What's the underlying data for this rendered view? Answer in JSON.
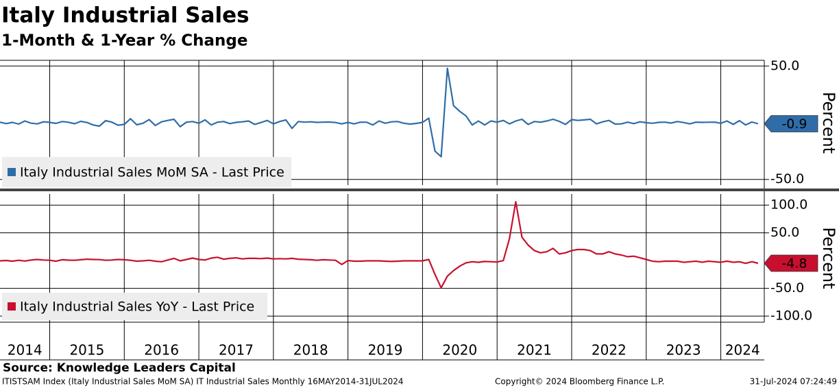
{
  "chart_data": [
    {
      "type": "line",
      "title": "Italy Industrial Sales",
      "subtitle": "1-Month & 1-Year % Change",
      "ylabel": "Percent",
      "x": [
        "2014-05",
        "2014-06",
        "2014-07",
        "2014-08",
        "2014-09",
        "2014-10",
        "2014-11",
        "2014-12",
        "2015-01",
        "2015-02",
        "2015-03",
        "2015-04",
        "2015-05",
        "2015-06",
        "2015-07",
        "2015-08",
        "2015-09",
        "2015-10",
        "2015-11",
        "2015-12",
        "2016-01",
        "2016-02",
        "2016-03",
        "2016-04",
        "2016-05",
        "2016-06",
        "2016-07",
        "2016-08",
        "2016-09",
        "2016-10",
        "2016-11",
        "2016-12",
        "2017-01",
        "2017-02",
        "2017-03",
        "2017-04",
        "2017-05",
        "2017-06",
        "2017-07",
        "2017-08",
        "2017-09",
        "2017-10",
        "2017-11",
        "2017-12",
        "2018-01",
        "2018-02",
        "2018-03",
        "2018-04",
        "2018-05",
        "2018-06",
        "2018-07",
        "2018-08",
        "2018-09",
        "2018-10",
        "2018-11",
        "2018-12",
        "2019-01",
        "2019-02",
        "2019-03",
        "2019-04",
        "2019-05",
        "2019-06",
        "2019-07",
        "2019-08",
        "2019-09",
        "2019-10",
        "2019-11",
        "2019-12",
        "2020-01",
        "2020-02",
        "2020-03",
        "2020-04",
        "2020-05",
        "2020-06",
        "2020-07",
        "2020-08",
        "2020-09",
        "2020-10",
        "2020-11",
        "2020-12",
        "2021-01",
        "2021-02",
        "2021-03",
        "2021-04",
        "2021-05",
        "2021-06",
        "2021-07",
        "2021-08",
        "2021-09",
        "2021-10",
        "2021-11",
        "2021-12",
        "2022-01",
        "2022-02",
        "2022-03",
        "2022-04",
        "2022-05",
        "2022-06",
        "2022-07",
        "2022-08",
        "2022-09",
        "2022-10",
        "2022-11",
        "2022-12",
        "2023-01",
        "2023-02",
        "2023-03",
        "2023-04",
        "2023-05",
        "2023-06",
        "2023-07",
        "2023-08",
        "2023-09",
        "2023-10",
        "2023-11",
        "2023-12",
        "2024-01",
        "2024-02",
        "2024-03",
        "2024-04",
        "2024-05",
        "2024-06",
        "2024-07"
      ],
      "series": [
        {
          "name": "Italy Industrial Sales MoM SA - Last Price",
          "color": "#2e6da8",
          "values": [
            0.5,
            -0.8,
            0.3,
            -1.2,
            1.5,
            -0.4,
            -1.0,
            0.8,
            0.3,
            -0.6,
            1.0,
            0.4,
            -0.9,
            1.2,
            0.2,
            -2.0,
            -3.0,
            1.8,
            0.5,
            -2.2,
            -1.5,
            3.5,
            -1.8,
            -0.5,
            2.8,
            -2.5,
            0.8,
            2.0,
            3.0,
            -3.5,
            0.5,
            1.0,
            -0.5,
            2.5,
            -2.0,
            0.5,
            1.0,
            -0.8,
            0.3,
            0.8,
            1.5,
            -1.5,
            0.2,
            2.0,
            -1.0,
            1.0,
            2.5,
            -5.0,
            1.0,
            0.5,
            0.8,
            0.3,
            0.5,
            0.6,
            0.2,
            -1.0,
            0.3,
            -1.0,
            0.5,
            0.4,
            -2.0,
            1.5,
            -0.5,
            0.8,
            1.0,
            -0.5,
            -1.2,
            -0.6,
            0.3,
            4.0,
            -25,
            -30,
            48,
            15,
            10,
            6,
            -2,
            1.5,
            -2,
            1.5,
            0.5,
            2.0,
            -1.0,
            1.5,
            3.0,
            -1.5,
            1.0,
            0.5,
            1.5,
            3.0,
            1.2,
            -1.5,
            2.8,
            2.0,
            2.5,
            3.0,
            -1.0,
            0.8,
            2.0,
            -1.2,
            -1.0,
            0.5,
            -0.8,
            0.8,
            0.0,
            -0.5,
            0.3,
            0.5,
            -0.3,
            1.0,
            0.2,
            -1.0,
            0.5,
            0.3,
            0.4,
            0.5,
            -0.5,
            1.5,
            -1.5,
            1.8,
            -2.0,
            0.6,
            -0.9
          ]
        }
      ],
      "xlim": [
        "2014-05",
        "2024-08"
      ],
      "xticks": [
        2014,
        2015,
        2016,
        2017,
        2018,
        2019,
        2020,
        2021,
        2022,
        2023,
        2024
      ],
      "ylim": [
        -55,
        55
      ],
      "yticks": [
        {
          "value": 50,
          "label": "50.0"
        },
        {
          "value": -50,
          "label": "-50.0"
        }
      ],
      "grid": true
    },
    {
      "type": "line",
      "ylabel": "Percent",
      "x": [
        "2014-05",
        "2014-06",
        "2014-07",
        "2014-08",
        "2014-09",
        "2014-10",
        "2014-11",
        "2014-12",
        "2015-01",
        "2015-02",
        "2015-03",
        "2015-04",
        "2015-05",
        "2015-06",
        "2015-07",
        "2015-08",
        "2015-09",
        "2015-10",
        "2015-11",
        "2015-12",
        "2016-01",
        "2016-02",
        "2016-03",
        "2016-04",
        "2016-05",
        "2016-06",
        "2016-07",
        "2016-08",
        "2016-09",
        "2016-10",
        "2016-11",
        "2016-12",
        "2017-01",
        "2017-02",
        "2017-03",
        "2017-04",
        "2017-05",
        "2017-06",
        "2017-07",
        "2017-08",
        "2017-09",
        "2017-10",
        "2017-11",
        "2017-12",
        "2018-01",
        "2018-02",
        "2018-03",
        "2018-04",
        "2018-05",
        "2018-06",
        "2018-07",
        "2018-08",
        "2018-09",
        "2018-10",
        "2018-11",
        "2018-12",
        "2019-01",
        "2019-02",
        "2019-03",
        "2019-04",
        "2019-05",
        "2019-06",
        "2019-07",
        "2019-08",
        "2019-09",
        "2019-10",
        "2019-11",
        "2019-12",
        "2020-01",
        "2020-02",
        "2020-03",
        "2020-04",
        "2020-05",
        "2020-06",
        "2020-07",
        "2020-08",
        "2020-09",
        "2020-10",
        "2020-11",
        "2020-12",
        "2021-01",
        "2021-02",
        "2021-03",
        "2021-04",
        "2021-05",
        "2021-06",
        "2021-07",
        "2021-08",
        "2021-09",
        "2021-10",
        "2021-11",
        "2021-12",
        "2022-01",
        "2022-02",
        "2022-03",
        "2022-04",
        "2022-05",
        "2022-06",
        "2022-07",
        "2022-08",
        "2022-09",
        "2022-10",
        "2022-11",
        "2022-12",
        "2023-01",
        "2023-02",
        "2023-03",
        "2023-04",
        "2023-05",
        "2023-06",
        "2023-07",
        "2023-08",
        "2023-09",
        "2023-10",
        "2023-11",
        "2023-12",
        "2024-01",
        "2024-02",
        "2024-03",
        "2024-04",
        "2024-05",
        "2024-06",
        "2024-07"
      ],
      "series": [
        {
          "name": "Italy Industrial Sales YoY - Last Price",
          "color": "#c8102e",
          "values": [
            -0.5,
            0.2,
            -1.0,
            0.5,
            -0.8,
            1.0,
            2.0,
            1.0,
            0.5,
            -1.0,
            1.5,
            0.8,
            0.5,
            1.5,
            2.5,
            2.0,
            1.8,
            0.5,
            1.0,
            2.0,
            1.5,
            0.5,
            -1.0,
            -0.5,
            0.5,
            -1.0,
            -2.0,
            1.0,
            4.0,
            -0.5,
            2.0,
            4.5,
            2.0,
            1.0,
            4.5,
            6.0,
            2.5,
            4.0,
            5.0,
            3.0,
            4.0,
            4.0,
            3.5,
            4.5,
            3.0,
            3.5,
            3.0,
            4.0,
            2.5,
            2.0,
            1.5,
            0.5,
            1.5,
            1.0,
            0.5,
            -7.0,
            0.0,
            -1.0,
            -1.0,
            -0.5,
            -0.5,
            -0.5,
            -1.0,
            -1.5,
            -1.0,
            -0.5,
            -0.5,
            -0.5,
            -0.5,
            2.0,
            -25,
            -49,
            -28,
            -18,
            -10,
            -4,
            -2,
            -3,
            -1.5,
            -2,
            -2.5,
            0.0,
            40,
            106,
            42,
            28,
            18,
            14,
            16,
            22,
            12,
            14,
            18,
            20,
            20,
            18,
            12,
            12,
            16,
            12,
            10,
            7,
            8,
            5,
            2,
            -1,
            -2,
            -1,
            -1,
            -1,
            -3,
            -2,
            -1,
            -3,
            -1,
            -2,
            -3,
            -1,
            -3,
            -2,
            -5,
            -2,
            -4.8
          ]
        }
      ],
      "xlim": [
        "2014-05",
        "2024-08"
      ],
      "xticks": [
        2014,
        2015,
        2016,
        2017,
        2018,
        2019,
        2020,
        2021,
        2022,
        2023,
        2024
      ],
      "ylim": [
        -111,
        120
      ],
      "yticks": [
        {
          "value": 100,
          "label": "100.0"
        },
        {
          "value": 50,
          "label": "50.0"
        },
        {
          "value": -50,
          "label": "-50.0"
        },
        {
          "value": -100,
          "label": "-100.0"
        }
      ],
      "grid": true
    }
  ],
  "footer": {
    "source": "Source: Knowledge Leaders Capital",
    "index": "ITISTSAM Index (Italy Industrial Sales MoM SA) IT Industrial Sales  Monthly 16MAY2014-31JUL2024",
    "copyright": "Copyright© 2024 Bloomberg Finance L.P.",
    "timestamp": "31-Jul-2024 07:24:49"
  }
}
